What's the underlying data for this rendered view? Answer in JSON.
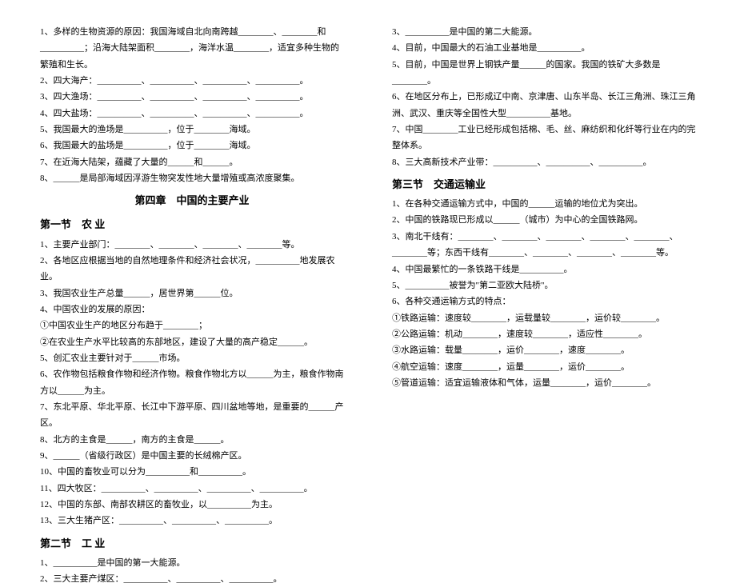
{
  "left": {
    "pre": [
      "1、多样的生物资源的原因：我国海域自北向南跨越________、________和__________；沿海大陆架面积________，海洋水温________，适宜多种生物的繁殖和生长。",
      "2、四大海产：__________、__________、__________、__________。",
      "3、四大渔场：__________、__________、__________、__________。",
      "4、四大盐场：__________、__________、__________、__________。",
      "5、我国最大的渔场是__________，位于________海域。",
      "6、我国最大的盐场是__________，位于________海域。",
      "7、在近海大陆架，蕴藏了大量的______和______。",
      "8、______是局部海域因浮游生物突发性地大量增殖或高浓度聚集。"
    ],
    "chapter": "第四章　中国的主要产业",
    "s1_title": "第一节　农 业",
    "s1": [
      "1、主要产业部门：________、________、________、________等。",
      "2、各地区应根据当地的自然地理条件和经济社会状况，__________地发展农业。",
      "3、我国农业生产总量______，居世界第______位。",
      "4、中国农业的发展的原因：",
      "①中国农业生产的地区分布趋于________；",
      "②在农业生产水平比较高的东部地区，建设了大量的高产稳定______。",
      "5、创汇农业主要针对于______市场。",
      "6、农作物包括粮食作物和经济作物。粮食作物北方以______为主，粮食作物南方以______为主。",
      "7、东北平原、华北平原、长江中下游平原、四川盆地等地，是重要的______产区。",
      "8、北方的主食是______，南方的主食是______。",
      "9、______（省级行政区）是中国主要的长绒棉产区。",
      "10、中国的畜牧业可以分为__________和__________。",
      "11、四大牧区：__________、__________、__________、__________。",
      "12、中国的东部、南部农耕区的畜牧业，以__________为主。",
      "13、三大生猪产区：__________、__________、__________。"
    ],
    "s2_title": "第二节　工 业",
    "s2": [
      "1、__________是中国的第一大能源。",
      "2、三大主要产煤区：__________、__________、__________。"
    ]
  },
  "right": {
    "s2_cont": [
      "3、__________是中国的第二大能源。",
      "4、目前，中国最大的石油工业基地是__________。",
      "5、目前，中国是世界上钢铁产量______的国家。我国的铁矿大多数是________。",
      "6、在地区分布上，已形成辽中南、京津唐、山东半岛、长江三角洲、珠江三角洲、武汉、重庆等全国性大型__________基地。",
      "7、中国________工业已经形成包括棉、毛、丝、麻纺织和化纤等行业在内的完整体系。",
      "8、三大高新技术产业带：__________、__________、__________。"
    ],
    "s3_title": "第三节　交通运输业",
    "s3": [
      "1、在各种交通运输方式中，中国的______运输的地位尤为突出。",
      "2、中国的铁路现已形成以______（城市）为中心的全国铁路网。",
      "3、南北干线有：________、________、________、________、________、________等；东西干线有________、________、________、________等。",
      "4、中国最繁忙的一条铁路干线是__________。",
      "5、__________被誉为\"第二亚欧大陆桥\"。",
      "6、各种交通运输方式的特点：",
      "①铁路运输：速度较________，运载量较________，运价较________。",
      "②公路运输：机动________，速度较________，适应性________。",
      "③水路运输：载量________，运价________，速度________。",
      "④航空运输：速度________，运量________，运价________。",
      "⑤管道运输：适宜运输液体和气体，运量________，运价________。"
    ]
  }
}
